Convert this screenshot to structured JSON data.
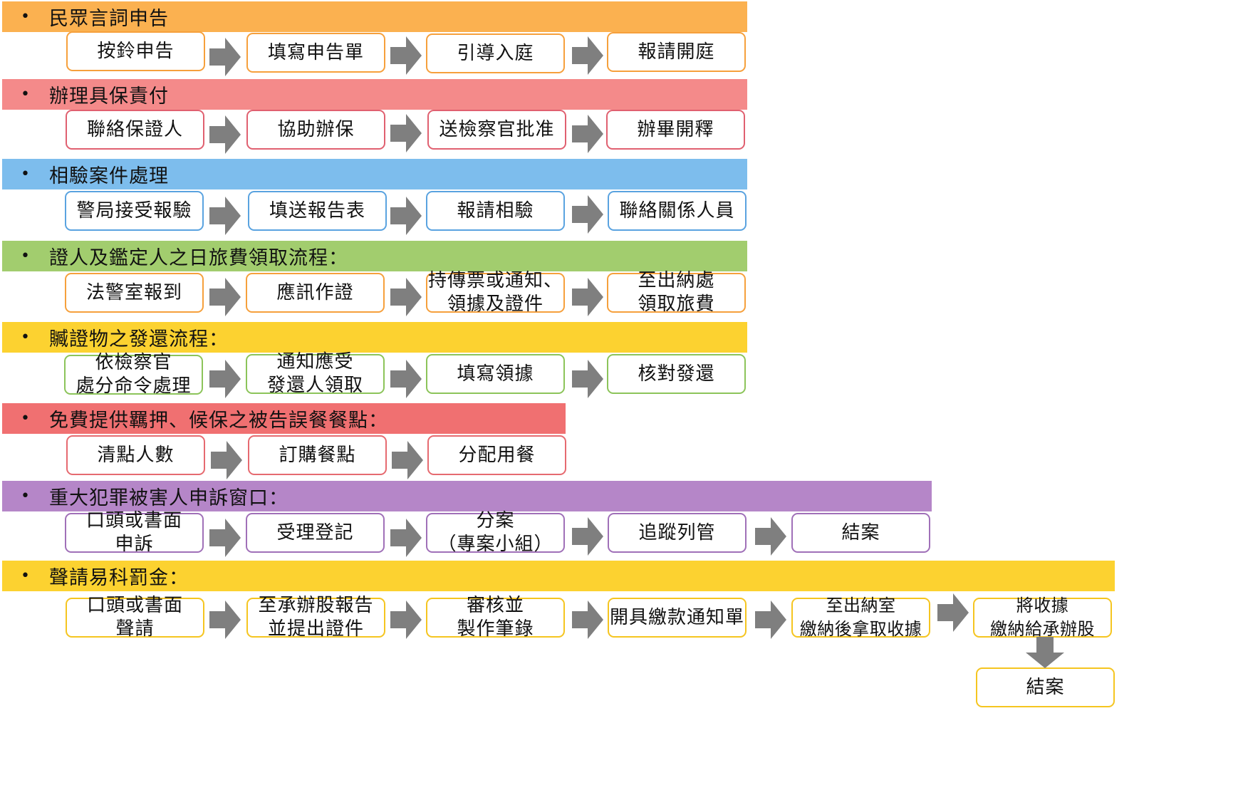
{
  "bullet_glyph": "•",
  "colors": {
    "orange_band": "#FBB150",
    "orange_border": "#F6A03C",
    "red_band": "#F48A8A",
    "red_border": "#E06070",
    "blue_band": "#7DBDED",
    "blue_border": "#5AA3E0",
    "green_band": "#A2CD6E",
    "green_border": "#8CC45A",
    "yellow_band": "#FCD230",
    "yellow_border": "#F5C520",
    "coral_band": "#F07071",
    "coral_border": "#E66A70",
    "purple_band": "#B586C8",
    "purple_border": "#A070B8",
    "arrow": "#7F7F7F"
  },
  "sections": [
    {
      "title": "民眾言詞申告",
      "steps": [
        "按鈴申告",
        "填寫申告單",
        "引導入庭",
        "報請開庭"
      ]
    },
    {
      "title": "辦理具保責付",
      "steps": [
        "聯絡保證人",
        "協助辦保",
        "送檢察官批准",
        "辦畢開釋"
      ]
    },
    {
      "title": "相驗案件處理",
      "steps": [
        "警局接受報驗",
        "填送報告表",
        "報請相驗",
        "聯絡關係人員"
      ]
    },
    {
      "title": "證人及鑑定人之日旅費領取流程：",
      "steps": [
        "法警室報到",
        "應訊作證",
        "持傳票或通知、\n領據及證件",
        "至出納處\n領取旅費"
      ]
    },
    {
      "title": "贓證物之發還流程：",
      "steps": [
        "依檢察官\n處分命令處理",
        "通知應受\n發還人領取",
        "填寫領據",
        "核對發還"
      ]
    },
    {
      "title": "免費提供羈押、候保之被告誤餐餐點：",
      "steps": [
        "清點人數",
        "訂購餐點",
        "分配用餐"
      ]
    },
    {
      "title": "重大犯罪被害人申訴窗口：",
      "steps": [
        "口頭或書面\n申訴",
        "受理登記",
        "分案\n（專案小組）",
        "追蹤列管",
        "結案"
      ]
    },
    {
      "title": "聲請易科罰金：",
      "steps": [
        "口頭或書面\n聲請",
        "至承辦股報告\n並提出證件",
        "審核並\n製作筆錄",
        "開具繳款通知單",
        "至出納室\n繳納後拿取收據",
        "將收據\n繳納給承辦股",
        "結案"
      ]
    }
  ]
}
